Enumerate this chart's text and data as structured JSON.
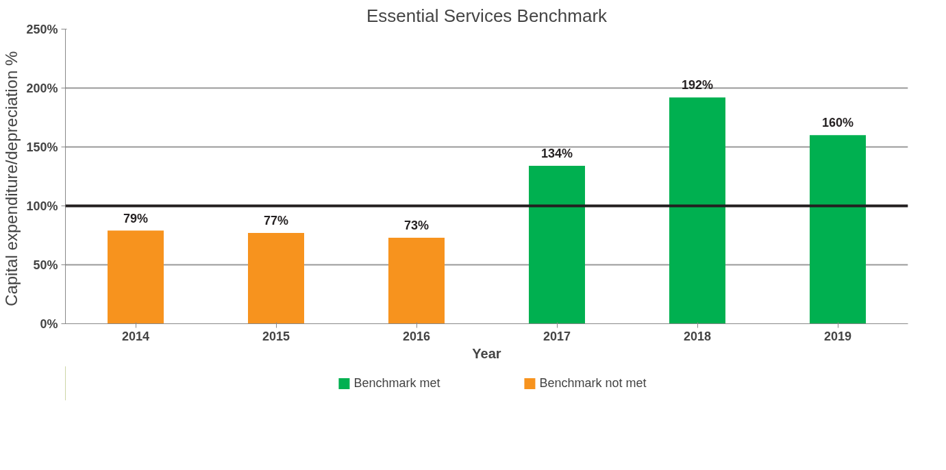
{
  "chart_data": {
    "type": "bar",
    "title": "Essential Services Benchmark",
    "xlabel": "Year",
    "ylabel": "Capital expenditure/depreciation  %",
    "categories": [
      "2014",
      "2015",
      "2016",
      "2017",
      "2018",
      "2019"
    ],
    "series": [
      {
        "name": "Benchmark met",
        "color": "#00b050",
        "values": [
          null,
          null,
          null,
          134,
          192,
          160
        ],
        "value_labels": [
          null,
          null,
          null,
          "134%",
          "192%",
          "160%"
        ]
      },
      {
        "name": "Benchmark not met",
        "color": "#f7931e",
        "values": [
          79,
          77,
          73,
          null,
          null,
          null
        ],
        "value_labels": [
          "79%",
          "77%",
          "73%",
          null,
          null,
          null
        ]
      }
    ],
    "ylim": [
      0,
      250
    ],
    "yticks": [
      {
        "value": 0,
        "label": "0%"
      },
      {
        "value": 50,
        "label": "50%"
      },
      {
        "value": 100,
        "label": "100%"
      },
      {
        "value": 150,
        "label": "150%"
      },
      {
        "value": 200,
        "label": "200%"
      },
      {
        "value": 250,
        "label": "250%"
      }
    ],
    "ref_lines": [
      {
        "axis": "y",
        "value": 100,
        "color": "#231f20"
      }
    ],
    "grid": "y",
    "legend": "bottom"
  }
}
